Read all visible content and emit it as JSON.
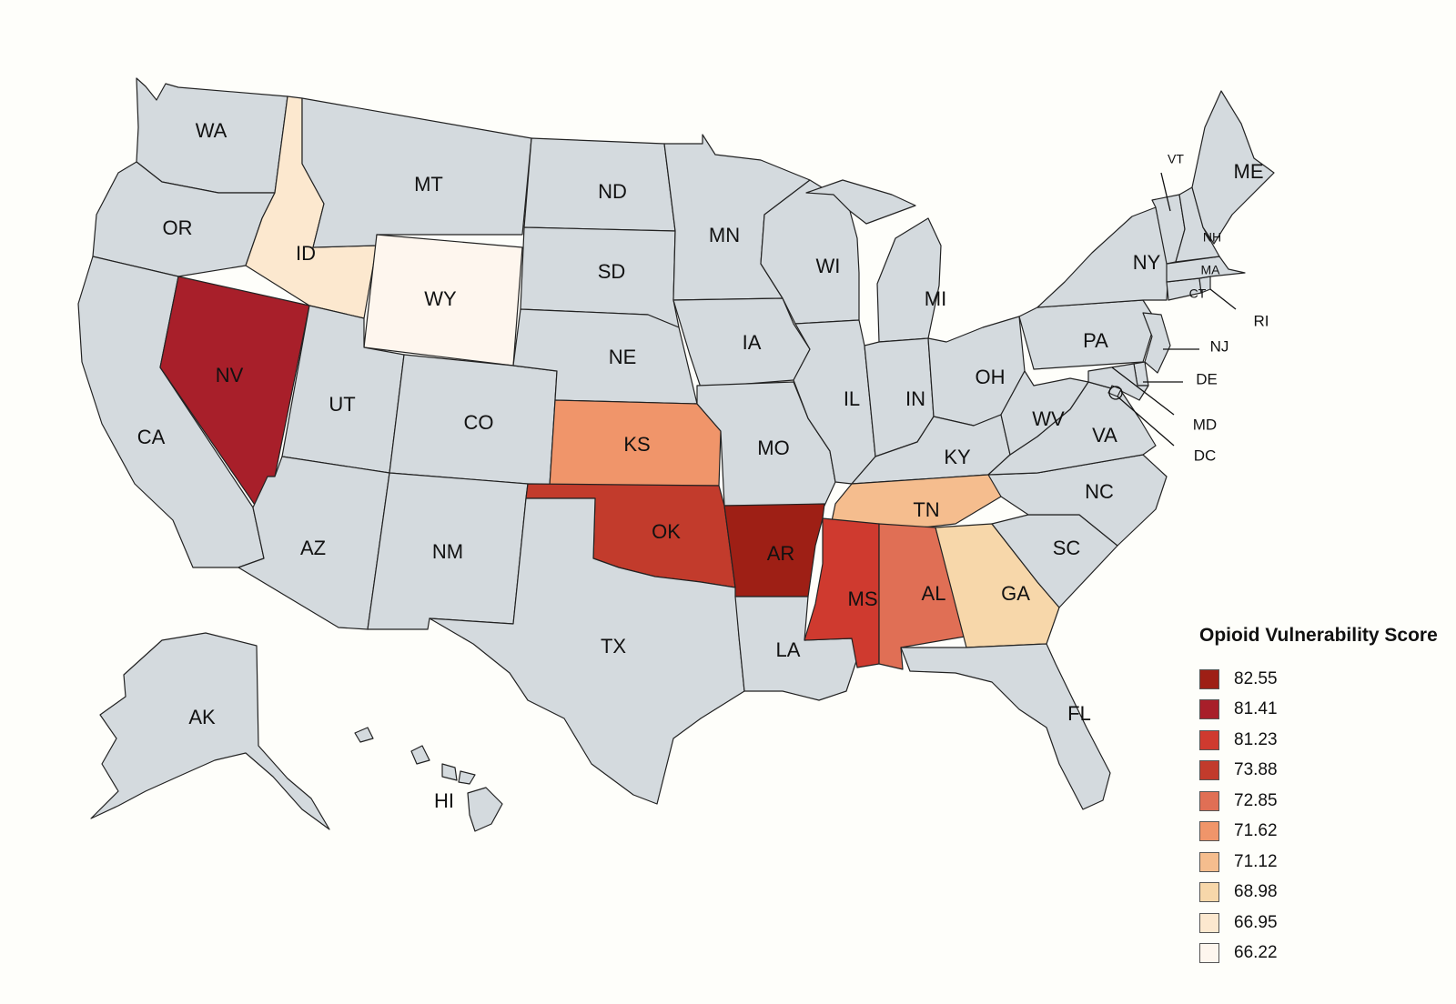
{
  "legend": {
    "title": "Opioid Vulnerability Score",
    "entries": [
      {
        "value": "82.55",
        "color": "#9e1f15"
      },
      {
        "value": "81.41",
        "color": "#a81f2a"
      },
      {
        "value": "81.23",
        "color": "#cf3a2f"
      },
      {
        "value": "73.88",
        "color": "#c23b2c"
      },
      {
        "value": "72.85",
        "color": "#e06f55"
      },
      {
        "value": "71.62",
        "color": "#f0956a"
      },
      {
        "value": "71.12",
        "color": "#f5bd8e"
      },
      {
        "value": "68.98",
        "color": "#f7d7aa"
      },
      {
        "value": "66.95",
        "color": "#fce8cf"
      },
      {
        "value": "66.22",
        "color": "#fef6ee"
      }
    ]
  },
  "default_color": "#d4dade",
  "states": {
    "WA": {
      "label": "WA"
    },
    "OR": {
      "label": "OR"
    },
    "CA": {
      "label": "CA"
    },
    "NV": {
      "label": "NV",
      "score": "81.41"
    },
    "ID": {
      "label": "ID",
      "score": "66.95"
    },
    "MT": {
      "label": "MT"
    },
    "WY": {
      "label": "WY",
      "score": "66.22"
    },
    "UT": {
      "label": "UT"
    },
    "AZ": {
      "label": "AZ"
    },
    "CO": {
      "label": "CO"
    },
    "NM": {
      "label": "NM"
    },
    "ND": {
      "label": "ND"
    },
    "SD": {
      "label": "SD"
    },
    "NE": {
      "label": "NE"
    },
    "KS": {
      "label": "KS",
      "score": "71.62"
    },
    "OK": {
      "label": "OK",
      "score": "73.88"
    },
    "TX": {
      "label": "TX"
    },
    "MN": {
      "label": "MN"
    },
    "IA": {
      "label": "IA"
    },
    "MO": {
      "label": "MO"
    },
    "AR": {
      "label": "AR",
      "score": "82.55"
    },
    "LA": {
      "label": "LA"
    },
    "WI": {
      "label": "WI"
    },
    "IL": {
      "label": "IL"
    },
    "MI": {
      "label": "MI"
    },
    "IN": {
      "label": "IN"
    },
    "OH": {
      "label": "OH"
    },
    "KY": {
      "label": "KY"
    },
    "TN": {
      "label": "TN",
      "score": "71.12"
    },
    "MS": {
      "label": "MS",
      "score": "81.23"
    },
    "AL": {
      "label": "AL",
      "score": "72.85"
    },
    "GA": {
      "label": "GA",
      "score": "68.98"
    },
    "FL": {
      "label": "FL"
    },
    "SC": {
      "label": "SC"
    },
    "NC": {
      "label": "NC"
    },
    "VA": {
      "label": "VA"
    },
    "WV": {
      "label": "WV"
    },
    "PA": {
      "label": "PA"
    },
    "NY": {
      "label": "NY"
    },
    "VT": {
      "label": "VT"
    },
    "NH": {
      "label": "NH"
    },
    "ME": {
      "label": "ME"
    },
    "MA": {
      "label": "MA"
    },
    "CT": {
      "label": "CT"
    },
    "RI": {
      "label": "RI"
    },
    "NJ": {
      "label": "NJ"
    },
    "DE": {
      "label": "DE"
    },
    "MD": {
      "label": "MD"
    },
    "DC": {
      "label": "DC"
    },
    "AK": {
      "label": "AK"
    },
    "HI": {
      "label": "HI"
    }
  }
}
